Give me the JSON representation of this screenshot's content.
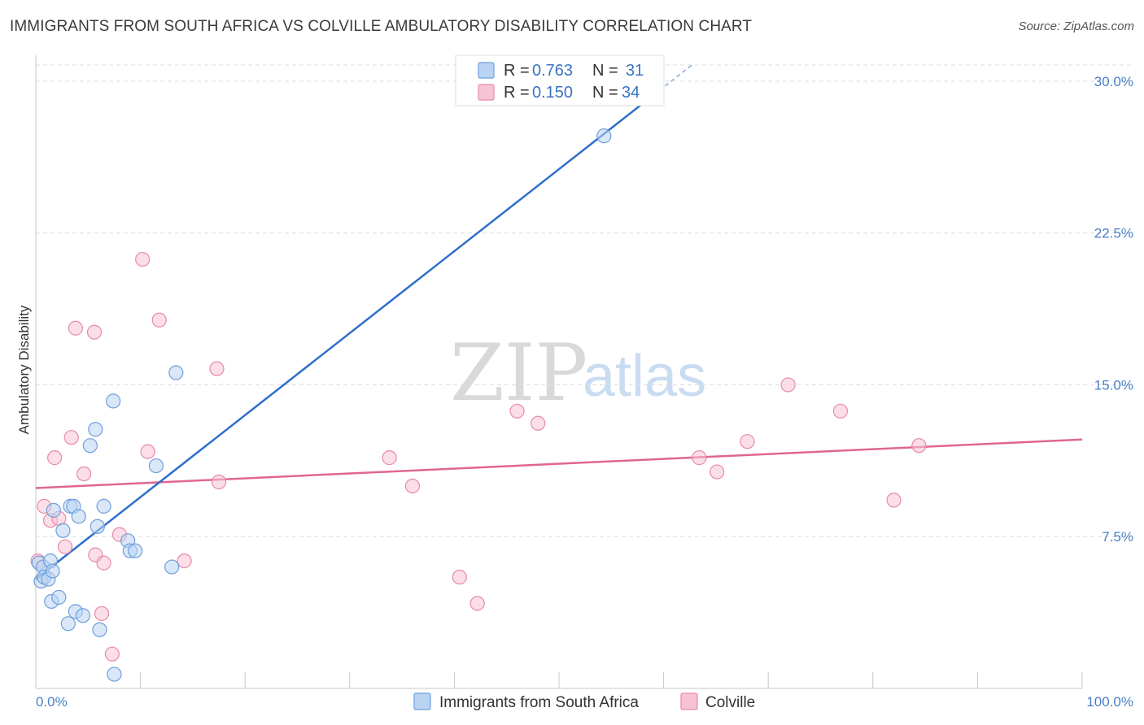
{
  "title": "IMMIGRANTS FROM SOUTH AFRICA VS COLVILLE AMBULATORY DISABILITY CORRELATION CHART",
  "source": "Source: ZipAtlas.com",
  "watermark": {
    "zip": "ZIP",
    "atlas": "atlas"
  },
  "colors": {
    "blue_fill": "#b9d3f3",
    "blue_stroke": "#6f9fdc",
    "blue_line": "#2f6fcc",
    "pink_fill": "#f7c3d3",
    "pink_stroke": "#e88aa8",
    "pink_line": "#e06690",
    "grid": "#dddddd",
    "axis_label": "#4a7fc6"
  },
  "legend": {
    "rows": [
      {
        "r_label": "R = ",
        "r_value": "0.763",
        "n_label": "N = ",
        "n_value": "31"
      },
      {
        "r_label": "R = ",
        "r_value": "0.150",
        "n_label": "N = ",
        "n_value": "34"
      }
    ]
  },
  "chart_data": {
    "type": "scatter",
    "ylabel": "Ambulatory Disability",
    "x_tick_labels": [
      "0.0%",
      "100.0%"
    ],
    "y_tick_labels": [
      "7.5%",
      "15.0%",
      "22.5%",
      "30.0%"
    ],
    "y_ticks": [
      7.5,
      15.0,
      22.5,
      30.0
    ],
    "xlim": [
      0,
      100
    ],
    "ylim": [
      0,
      30.8
    ],
    "grid": true,
    "legend_position": "top-center",
    "series": [
      {
        "name": "Immigrants from South Africa",
        "color": "#6f9fdc",
        "points": [
          [
            0.3,
            6.2
          ],
          [
            0.5,
            5.3
          ],
          [
            0.7,
            6.0
          ],
          [
            0.8,
            5.5
          ],
          [
            1.2,
            5.4
          ],
          [
            1.4,
            6.3
          ],
          [
            1.5,
            4.3
          ],
          [
            1.6,
            5.8
          ],
          [
            1.7,
            8.8
          ],
          [
            2.2,
            4.5
          ],
          [
            2.6,
            7.8
          ],
          [
            3.1,
            3.2
          ],
          [
            3.3,
            9.0
          ],
          [
            3.6,
            9.0
          ],
          [
            3.8,
            3.8
          ],
          [
            4.1,
            8.5
          ],
          [
            4.5,
            3.6
          ],
          [
            5.2,
            12.0
          ],
          [
            5.7,
            12.8
          ],
          [
            5.9,
            8.0
          ],
          [
            6.1,
            2.9
          ],
          [
            6.5,
            9.0
          ],
          [
            7.4,
            14.2
          ],
          [
            7.5,
            0.7
          ],
          [
            8.8,
            7.3
          ],
          [
            9.0,
            6.8
          ],
          [
            9.5,
            6.8
          ],
          [
            11.5,
            11.0
          ],
          [
            13.0,
            6.0
          ],
          [
            13.4,
            15.6
          ],
          [
            54.3,
            27.3
          ]
        ],
        "trend": {
          "x": [
            0,
            62.7
          ],
          "y": [
            5.4,
            30.8
          ],
          "dashed_from_x": 59.6
        }
      },
      {
        "name": "Colville",
        "color": "#e88aa8",
        "points": [
          [
            0.2,
            6.3
          ],
          [
            0.8,
            9.0
          ],
          [
            1.4,
            8.3
          ],
          [
            1.8,
            11.4
          ],
          [
            2.2,
            8.4
          ],
          [
            2.8,
            7.0
          ],
          [
            3.4,
            12.4
          ],
          [
            3.8,
            17.8
          ],
          [
            4.6,
            10.6
          ],
          [
            5.6,
            17.6
          ],
          [
            5.7,
            6.6
          ],
          [
            6.3,
            3.7
          ],
          [
            6.5,
            6.2
          ],
          [
            7.3,
            1.7
          ],
          [
            8.0,
            7.6
          ],
          [
            10.2,
            21.2
          ],
          [
            10.7,
            11.7
          ],
          [
            11.8,
            18.2
          ],
          [
            14.2,
            6.3
          ],
          [
            17.3,
            15.8
          ],
          [
            17.5,
            10.2
          ],
          [
            33.8,
            11.4
          ],
          [
            36.0,
            10.0
          ],
          [
            40.5,
            5.5
          ],
          [
            42.2,
            4.2
          ],
          [
            46.0,
            13.7
          ],
          [
            48.0,
            13.1
          ],
          [
            63.4,
            11.4
          ],
          [
            65.1,
            10.7
          ],
          [
            68.0,
            12.2
          ],
          [
            71.9,
            15.0
          ],
          [
            76.9,
            13.7
          ],
          [
            82.0,
            9.3
          ],
          [
            84.4,
            12.0
          ]
        ],
        "trend": {
          "x": [
            0,
            100
          ],
          "y": [
            9.9,
            12.3
          ]
        }
      }
    ],
    "bottom_legend": [
      "Immigrants from South Africa",
      "Colville"
    ]
  }
}
